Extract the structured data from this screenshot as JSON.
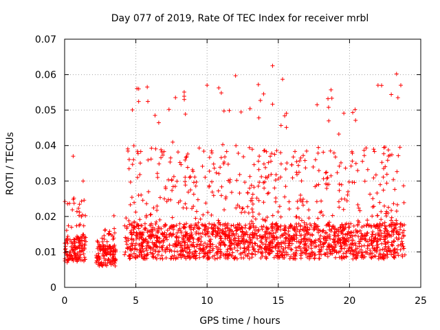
{
  "chart_data": {
    "type": "scatter",
    "title": "Day 077 of 2019, Rate Of TEC Index for receiver mrbl",
    "xlabel": "GPS time / hours",
    "ylabel": "ROTI / TECUs",
    "xlim": [
      0,
      25
    ],
    "ylim": [
      0,
      0.07
    ],
    "xticks": [
      "0",
      "5",
      "10",
      "15",
      "20",
      "25"
    ],
    "yticks": [
      "0",
      "0.01",
      "0.02",
      "0.03",
      "0.04",
      "0.05",
      "0.06",
      "0.07"
    ],
    "grid": true,
    "marker": "+",
    "series": [
      {
        "name": "ROTI",
        "color": "#ff0000",
        "segments": [
          {
            "start": 0.0,
            "end": 1.5,
            "base": 0.011,
            "spread": 0.008,
            "peak": 0.037
          },
          {
            "start": 2.2,
            "end": 3.6,
            "base": 0.01,
            "spread": 0.006,
            "peak": 0.022
          },
          {
            "start": 4.2,
            "end": 23.9,
            "base": 0.012,
            "spread": 0.01,
            "peak": 0.062
          }
        ],
        "notable_points": [
          {
            "x": 14.6,
            "y": 0.0625
          },
          {
            "x": 23.3,
            "y": 0.0602
          },
          {
            "x": 12.0,
            "y": 0.0597
          },
          {
            "x": 5.2,
            "y": 0.056
          },
          {
            "x": 5.8,
            "y": 0.0565
          },
          {
            "x": 10.0,
            "y": 0.057
          },
          {
            "x": 13.6,
            "y": 0.0572
          },
          {
            "x": 15.3,
            "y": 0.0587
          },
          {
            "x": 18.7,
            "y": 0.0557
          },
          {
            "x": 22.0,
            "y": 0.057
          },
          {
            "x": 23.6,
            "y": 0.057
          },
          {
            "x": 8.4,
            "y": 0.053
          },
          {
            "x": 0.6,
            "y": 0.037
          },
          {
            "x": 1.3,
            "y": 0.03
          }
        ]
      }
    ]
  }
}
